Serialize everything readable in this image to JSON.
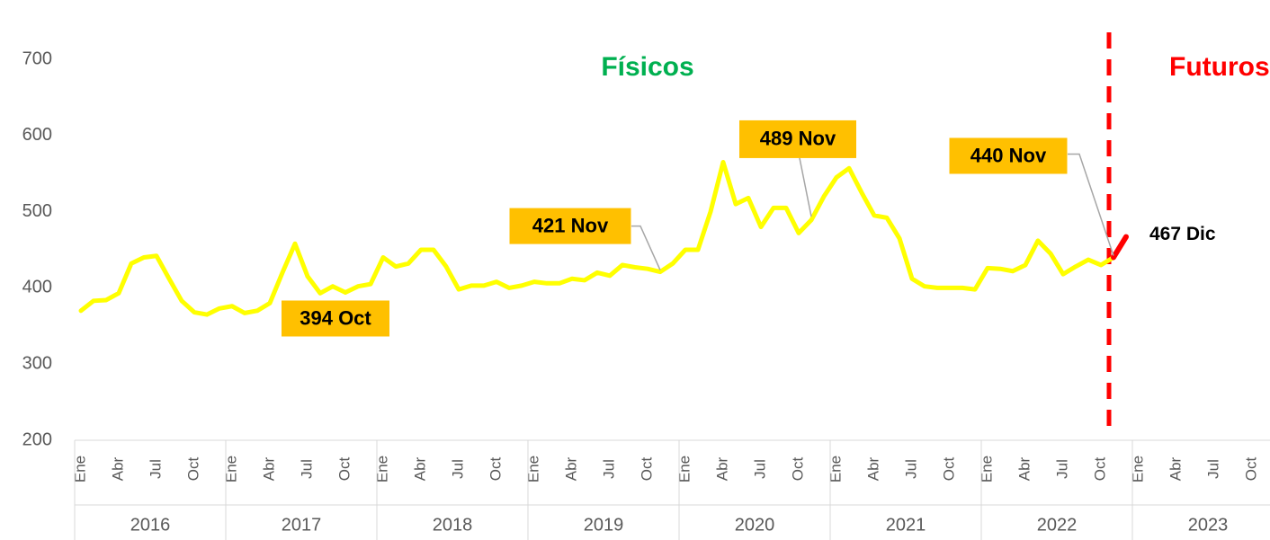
{
  "chart_data": {
    "type": "line",
    "region_labels": [
      "Físicos",
      "Futuros"
    ],
    "region_colors": [
      "#00b050",
      "#ff0000"
    ],
    "categories": [
      "Ene",
      null,
      null,
      "Abr",
      null,
      null,
      "Jul",
      null,
      null,
      "Oct",
      null,
      null,
      "Ene",
      null,
      null,
      "Abr",
      null,
      null,
      "Jul",
      null,
      null,
      "Oct",
      null,
      null,
      "Ene",
      null,
      null,
      "Abr",
      null,
      null,
      "Jul",
      null,
      null,
      "Oct",
      null,
      null,
      "Ene",
      null,
      null,
      "Abr",
      null,
      null,
      "Jul",
      null,
      null,
      "Oct",
      null,
      null,
      "Ene",
      null,
      null,
      "Abr",
      null,
      null,
      "Jul",
      null,
      null,
      "Oct",
      null,
      null,
      "Ene",
      null,
      null,
      "Abr",
      null,
      null,
      "Jul",
      null,
      null,
      "Oct",
      null,
      null,
      "Ene",
      null,
      null,
      "Abr",
      null,
      null,
      "Jul",
      null,
      null,
      "Oct",
      null,
      null,
      "Ene",
      null,
      null,
      "Abr",
      null,
      null,
      "Jul",
      null,
      null,
      "Oct",
      null,
      null
    ],
    "year_groups": [
      "2016",
      "2017",
      "2018",
      "2019",
      "2020",
      "2021",
      "2022",
      "2023"
    ],
    "series": [
      {
        "color": "#ffff00",
        "values": [
          370,
          383,
          384,
          393,
          432,
          440,
          442,
          412,
          383,
          368,
          365,
          373,
          376,
          367,
          370,
          380,
          420,
          458,
          415,
          393,
          402,
          394,
          402,
          405,
          440,
          428,
          432,
          450,
          450,
          428,
          398,
          403,
          403,
          408,
          400,
          403,
          408,
          406,
          406,
          412,
          410,
          420,
          416,
          430,
          427,
          425,
          421,
          432,
          450,
          450,
          500,
          565,
          510,
          518,
          480,
          505,
          505,
          472,
          489,
          520,
          545,
          557,
          525,
          495,
          492,
          465,
          412,
          402,
          400,
          400,
          400,
          398,
          426,
          425,
          422,
          430,
          462,
          445,
          418,
          428,
          437,
          430,
          440,
          null,
          null,
          null,
          null,
          null,
          null,
          null,
          null,
          null,
          null,
          null,
          null,
          null
        ],
        "value_labels": [
          null,
          null,
          null,
          null,
          null,
          null,
          null,
          null,
          null,
          null,
          null,
          null,
          null,
          null,
          null,
          null,
          null,
          null,
          null,
          null,
          null,
          "394 Oct",
          null,
          null,
          null,
          null,
          null,
          null,
          null,
          null,
          null,
          null,
          null,
          null,
          null,
          null,
          null,
          null,
          null,
          null,
          null,
          null,
          null,
          null,
          null,
          null,
          "421 Nov",
          null,
          null,
          null,
          null,
          null,
          null,
          null,
          null,
          null,
          null,
          null,
          "489 Nov",
          null,
          null,
          null,
          null,
          null,
          null,
          null,
          null,
          null,
          null,
          null,
          null,
          null,
          null,
          null,
          null,
          null,
          null,
          null,
          null,
          null,
          null,
          null,
          "440 Nov",
          null,
          null,
          null,
          null,
          null,
          null,
          null,
          null,
          null,
          null,
          null,
          null,
          null
        ]
      },
      {
        "color": "#ff0000",
        "values": [
          null,
          null,
          null,
          null,
          null,
          null,
          null,
          null,
          null,
          null,
          null,
          null,
          null,
          null,
          null,
          null,
          null,
          null,
          null,
          null,
          null,
          null,
          null,
          null,
          null,
          null,
          null,
          null,
          null,
          null,
          null,
          null,
          null,
          null,
          null,
          null,
          null,
          null,
          null,
          null,
          null,
          null,
          null,
          null,
          null,
          null,
          null,
          null,
          null,
          null,
          null,
          null,
          null,
          null,
          null,
          null,
          null,
          null,
          null,
          null,
          null,
          null,
          null,
          null,
          null,
          null,
          null,
          null,
          null,
          null,
          null,
          null,
          null,
          null,
          null,
          null,
          null,
          null,
          null,
          null,
          null,
          null,
          440,
          467,
          null,
          null,
          null,
          null,
          null,
          null,
          null,
          null,
          null,
          null,
          null,
          null
        ],
        "value_labels": [
          null,
          null,
          null,
          null,
          null,
          null,
          null,
          null,
          null,
          null,
          null,
          null,
          null,
          null,
          null,
          null,
          null,
          null,
          null,
          null,
          null,
          null,
          null,
          null,
          null,
          null,
          null,
          null,
          null,
          null,
          null,
          null,
          null,
          null,
          null,
          null,
          null,
          null,
          null,
          null,
          null,
          null,
          null,
          null,
          null,
          null,
          null,
          null,
          null,
          null,
          null,
          null,
          null,
          null,
          null,
          null,
          null,
          null,
          null,
          null,
          null,
          null,
          null,
          null,
          null,
          null,
          null,
          null,
          null,
          null,
          null,
          null,
          null,
          null,
          null,
          null,
          null,
          null,
          null,
          null,
          null,
          null,
          null,
          "467 Dic",
          null,
          null,
          null,
          null,
          null,
          null,
          null,
          null,
          null,
          null,
          null,
          null
        ]
      }
    ],
    "ylim": [
      200,
      750
    ],
    "yticks": [
      200,
      300,
      400,
      500,
      600,
      700
    ],
    "grid": false
  }
}
